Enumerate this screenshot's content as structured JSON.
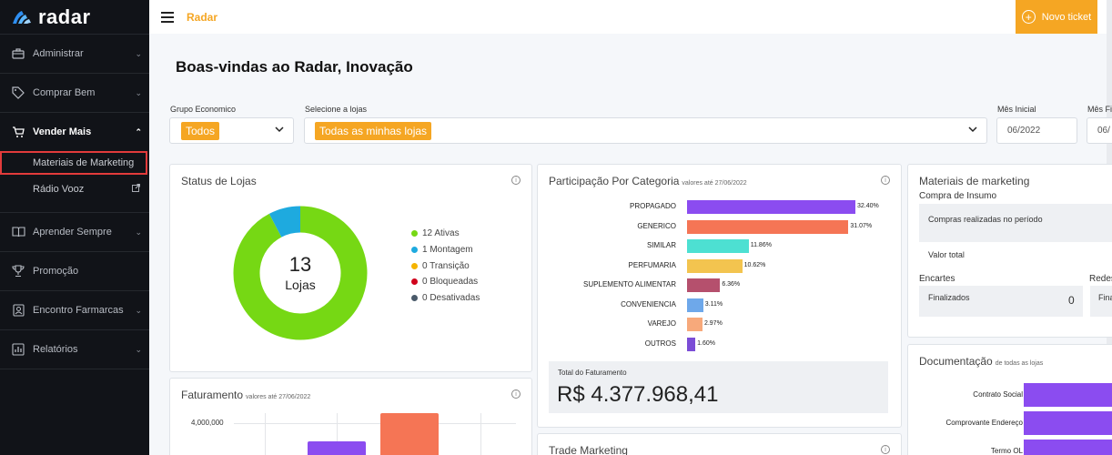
{
  "app": {
    "logo_text": "radar",
    "top_title": "Radar",
    "ticket_label": "Novo ticket",
    "ticket_plus": "+"
  },
  "sidebar": {
    "items": [
      {
        "label": "Administrar",
        "icon": "briefcase-icon"
      },
      {
        "label": "Comprar Bem",
        "icon": "tag-icon"
      },
      {
        "label": "Vender Mais",
        "icon": "cart-icon",
        "active": true
      },
      {
        "label": "Aprender Sempre",
        "icon": "book-icon"
      },
      {
        "label": "Promoção",
        "icon": "trophy-icon"
      },
      {
        "label": "Encontro Farmarcas",
        "icon": "badge-icon"
      },
      {
        "label": "Relatórios",
        "icon": "chart-icon"
      }
    ],
    "sub_items": [
      {
        "label": "Materiais de Marketing"
      },
      {
        "label": "Rádio Vooz",
        "icon": "external-link-icon"
      }
    ]
  },
  "page": {
    "title": "Boas-vindas ao Radar, Inovação"
  },
  "filters": {
    "grupo_label": "Grupo Economico",
    "grupo_value": "Todos",
    "lojas_label": "Selecione a lojas",
    "lojas_value": "Todas as minhas lojas",
    "mes_inicial_label": "Mês Inicial",
    "mes_inicial_value": "06/2022",
    "mes_final_label": "Mês Fi",
    "mes_final_value": "06/"
  },
  "status_lojas": {
    "title": "Status de Lojas",
    "center_number": "13",
    "center_label": "Lojas",
    "legend": [
      {
        "label": "12 Ativas",
        "value": 12,
        "color": "#76d814"
      },
      {
        "label": "1 Montagem",
        "value": 1,
        "color": "#1eaadf"
      },
      {
        "label": "0 Transição",
        "value": 0,
        "color": "#f5b400"
      },
      {
        "label": "0 Bloqueadas",
        "value": 0,
        "color": "#d0021b"
      },
      {
        "label": "0 Desativadas",
        "value": 0,
        "color": "#4a5a6a"
      }
    ]
  },
  "participacao": {
    "title": "Participação Por Categoria",
    "subtitle": "valores até 27/06/2022",
    "total_label": "Total do Faturamento",
    "total_value": "R$ 4.377.968,41"
  },
  "chart_data": {
    "type": "bar",
    "orientation": "horizontal",
    "categories": [
      "PROPAGADO",
      "GENERICO",
      "SIMILAR",
      "PERFUMARIA",
      "SUPLEMENTO ALIMENTAR",
      "CONVENIENCIA",
      "VAREJO",
      "OUTROS"
    ],
    "values": [
      32.4,
      31.07,
      11.86,
      10.62,
      6.36,
      3.11,
      2.97,
      1.6
    ],
    "labels": [
      "32.40%",
      "31.07%",
      "11.86%",
      "10.62%",
      "6.36%",
      "3.11%",
      "2.97%",
      "1.60%"
    ],
    "colors": [
      "#8b4cf0",
      "#f57555",
      "#4de0d2",
      "#f3c44f",
      "#b5506d",
      "#6ea8ea",
      "#f7a97b",
      "#7b4dd6"
    ]
  },
  "faturamento": {
    "title": "Faturamento",
    "subtitle": "valores até 27/06/2022",
    "y_tick": "4,000,000"
  },
  "materiais": {
    "title": "Materiais de marketing",
    "compra_title": "Compra de Insumo",
    "compras_realizadas": "Compras realizadas no período",
    "valor_total": "Valor total",
    "encartes_title": "Encartes",
    "finalizados_label": "Finalizados",
    "finalizados_value": "0",
    "redes_title": "Redes",
    "fina_label": "Fina"
  },
  "documentacao": {
    "title": "Documentação",
    "subtitle": "de todas as lojas",
    "rows": [
      "Contrato Social",
      "Comprovante Endereço",
      "Termo OL"
    ]
  },
  "trade": {
    "title": "Trade Marketing"
  }
}
